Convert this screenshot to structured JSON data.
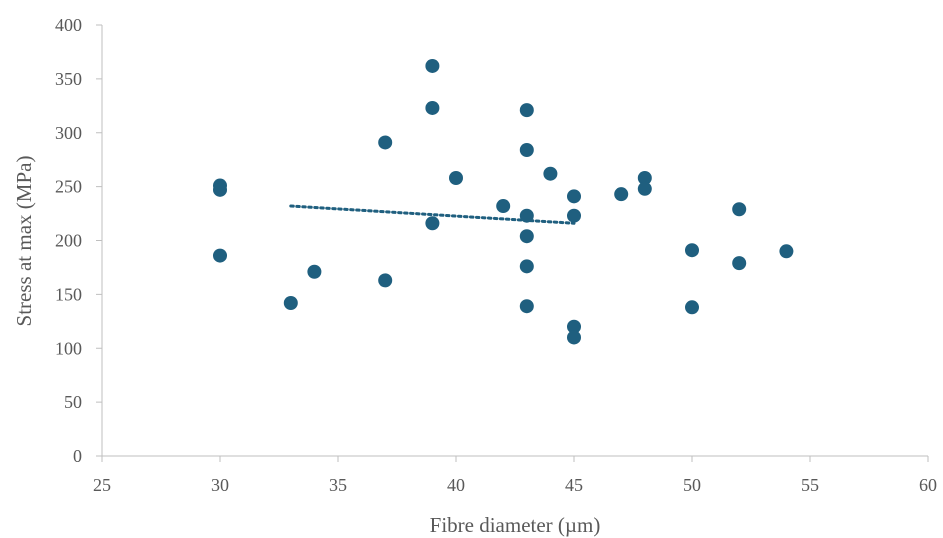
{
  "chart_data": {
    "type": "scatter",
    "title": "",
    "xlabel": "Fibre diameter (µm)",
    "ylabel": "Stress at max (MPa)",
    "xlim": [
      25,
      60
    ],
    "ylim": [
      0,
      400
    ],
    "xticks": [
      25,
      30,
      35,
      40,
      45,
      50,
      55,
      60
    ],
    "yticks": [
      0,
      50,
      100,
      150,
      200,
      250,
      300,
      350,
      400
    ],
    "grid": false,
    "legend": "none",
    "marker_color": "#1f5f7f",
    "trendline_color": "#1f5f7f",
    "points": [
      {
        "x": 30,
        "y": 251
      },
      {
        "x": 30,
        "y": 247
      },
      {
        "x": 30,
        "y": 186
      },
      {
        "x": 33,
        "y": 142
      },
      {
        "x": 34,
        "y": 171
      },
      {
        "x": 37,
        "y": 291
      },
      {
        "x": 37,
        "y": 163
      },
      {
        "x": 39,
        "y": 362
      },
      {
        "x": 39,
        "y": 323
      },
      {
        "x": 39,
        "y": 216
      },
      {
        "x": 40,
        "y": 258
      },
      {
        "x": 42,
        "y": 232
      },
      {
        "x": 43,
        "y": 321
      },
      {
        "x": 43,
        "y": 284
      },
      {
        "x": 43,
        "y": 223
      },
      {
        "x": 43,
        "y": 204
      },
      {
        "x": 43,
        "y": 176
      },
      {
        "x": 43,
        "y": 139
      },
      {
        "x": 44,
        "y": 262
      },
      {
        "x": 45,
        "y": 241
      },
      {
        "x": 45,
        "y": 223
      },
      {
        "x": 45,
        "y": 120
      },
      {
        "x": 45,
        "y": 110
      },
      {
        "x": 47,
        "y": 243
      },
      {
        "x": 48,
        "y": 258
      },
      {
        "x": 48,
        "y": 248
      },
      {
        "x": 50,
        "y": 191
      },
      {
        "x": 50,
        "y": 138
      },
      {
        "x": 52,
        "y": 229
      },
      {
        "x": 52,
        "y": 179
      },
      {
        "x": 54,
        "y": 190
      }
    ],
    "trendline": [
      {
        "x": 33,
        "y": 232
      },
      {
        "x": 45,
        "y": 216
      }
    ]
  }
}
